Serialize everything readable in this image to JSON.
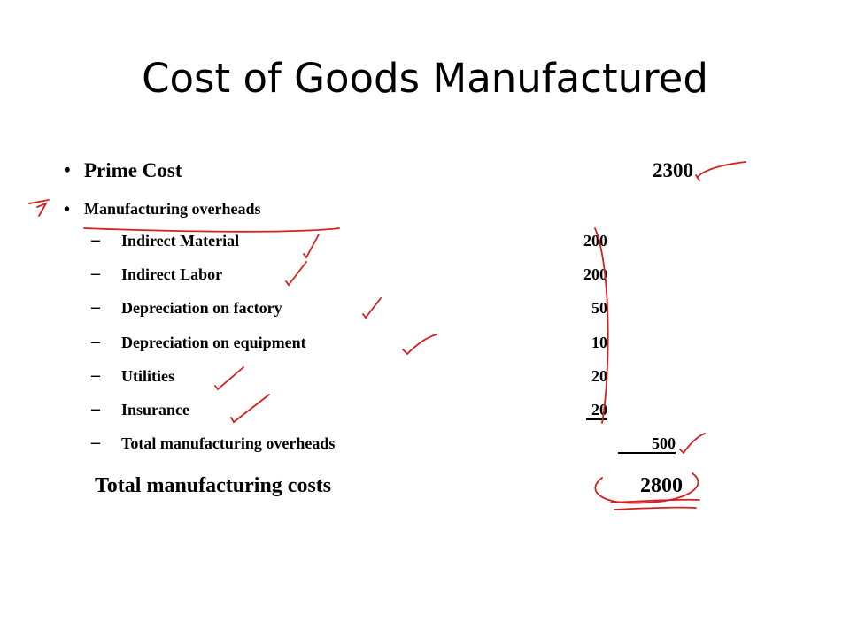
{
  "title": "Cost of Goods Manufactured",
  "prime_cost": {
    "label": "Prime Cost",
    "value": 2300
  },
  "overheads_heading": "Manufacturing overheads",
  "overheads": [
    {
      "label": "Indirect Material",
      "value": 200
    },
    {
      "label": "Indirect Labor",
      "value": 200
    },
    {
      "label": "Depreciation on factory",
      "value": 50
    },
    {
      "label": "Depreciation on equipment",
      "value": 10
    },
    {
      "label": "Utilities",
      "value": 20
    },
    {
      "label": "Insurance",
      "value": 20
    }
  ],
  "overhead_total": {
    "label": "Total manufacturing overheads",
    "value": 500
  },
  "total": {
    "label": "Total manufacturing costs",
    "value": 2800
  }
}
